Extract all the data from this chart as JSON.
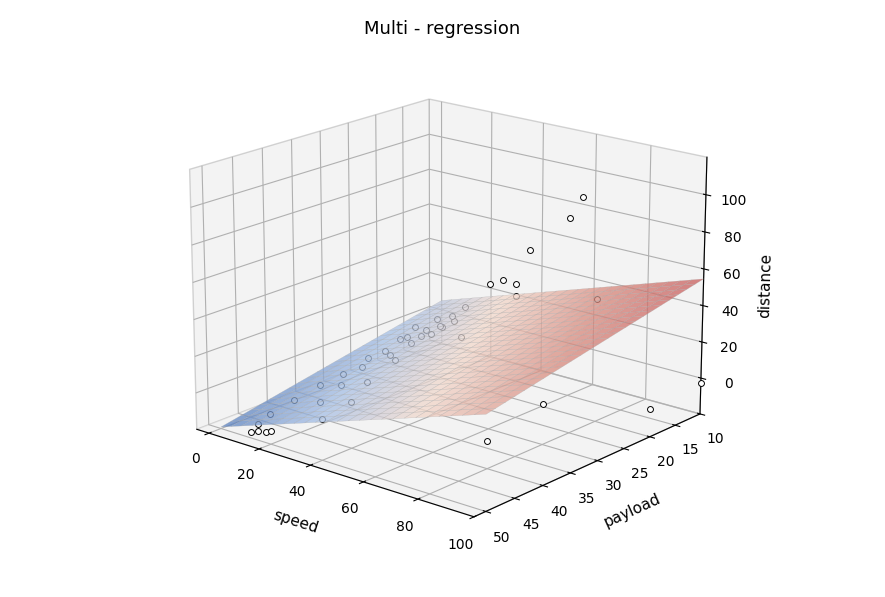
{
  "title": "Multi - regression",
  "xlabel": "speed",
  "ylabel": "payload",
  "zlabel": "distance",
  "speed_range": [
    -5,
    100
  ],
  "payload_range": [
    10,
    52
  ],
  "distance_range": [
    -20,
    120
  ],
  "scatter_data": [
    [
      0,
      10,
      -10
    ],
    [
      0,
      12,
      -12
    ],
    [
      0,
      14,
      -11
    ],
    [
      0,
      16,
      -13
    ],
    [
      0,
      18,
      -8
    ],
    [
      0,
      20,
      -15
    ],
    [
      2,
      25,
      -10
    ],
    [
      3,
      30,
      -13
    ],
    [
      5,
      35,
      -12
    ],
    [
      6,
      40,
      -14
    ],
    [
      8,
      45,
      -15
    ],
    [
      10,
      48,
      -16
    ],
    [
      12,
      50,
      -17
    ],
    [
      15,
      50,
      -15
    ],
    [
      18,
      50,
      -14
    ],
    [
      20,
      50,
      -13
    ],
    [
      5,
      10,
      -5
    ],
    [
      10,
      15,
      0
    ],
    [
      15,
      20,
      5
    ],
    [
      18,
      25,
      8
    ],
    [
      20,
      30,
      7
    ],
    [
      22,
      35,
      5
    ],
    [
      25,
      40,
      2
    ],
    [
      28,
      45,
      0
    ],
    [
      20,
      15,
      15
    ],
    [
      25,
      20,
      17
    ],
    [
      30,
      25,
      23
    ],
    [
      32,
      30,
      25
    ],
    [
      35,
      35,
      14
    ],
    [
      35,
      40,
      8
    ],
    [
      40,
      45,
      5
    ],
    [
      40,
      50,
      2
    ],
    [
      40,
      15,
      35
    ],
    [
      45,
      20,
      45
    ],
    [
      50,
      25,
      50
    ],
    [
      55,
      20,
      65
    ],
    [
      60,
      15,
      79
    ],
    [
      65,
      15,
      92
    ],
    [
      60,
      25,
      47
    ],
    [
      60,
      35,
      36
    ],
    [
      80,
      20,
      47
    ],
    [
      80,
      30,
      2
    ],
    [
      80,
      40,
      -5
    ],
    [
      100,
      10,
      -3
    ],
    [
      100,
      20,
      -5
    ]
  ],
  "surface_alpha": 0.75,
  "elev": 18,
  "azim": -50,
  "figsize": [
    8.85,
    5.97
  ],
  "dpi": 100,
  "bg_color": "white",
  "pane_color": "#e8e8e8",
  "grid_color": "#cccccc"
}
